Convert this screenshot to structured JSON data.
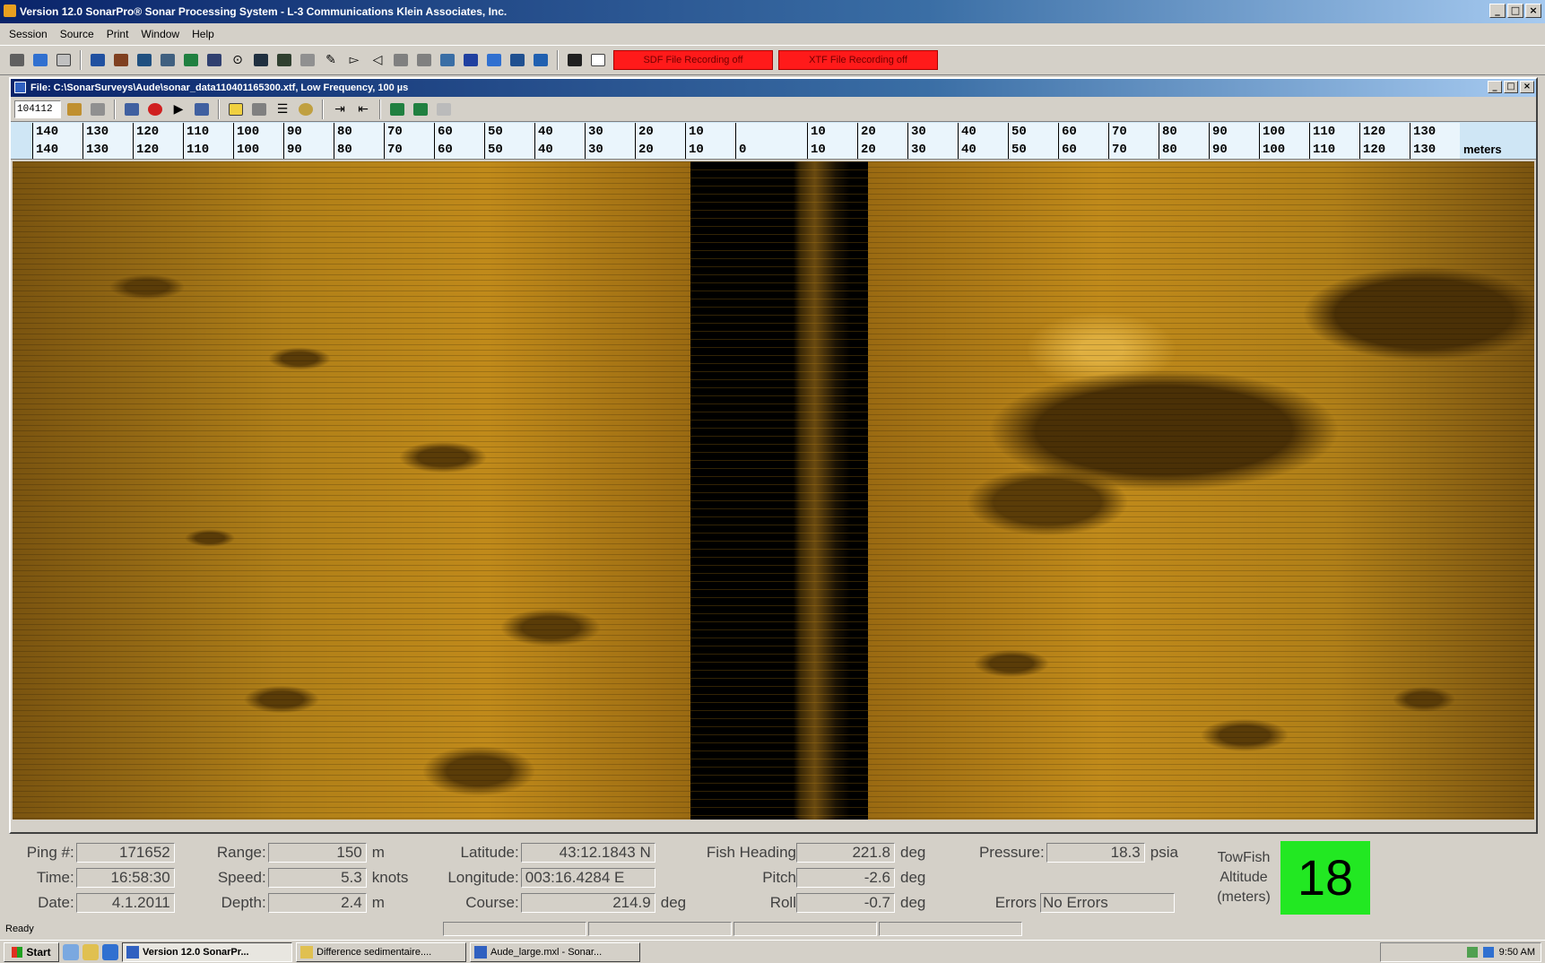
{
  "window": {
    "title": "Version 12.0 SonarPro® Sonar Processing System - L-3 Communications Klein Associates, Inc.",
    "controls": [
      "_",
      "□",
      "×"
    ]
  },
  "menu": [
    "Session",
    "Source",
    "Print",
    "Window",
    "Help"
  ],
  "toolbar": {
    "red_buttons": [
      "SDF File Recording off",
      "XTF File Recording off"
    ]
  },
  "child": {
    "title": "File: C:\\SonarSurveys\\Aude\\sonar_data110401165300.xtf, Low Frequency, 100 µs",
    "ping_field": "104112"
  },
  "scale": {
    "port": [
      "140",
      "130",
      "120",
      "110",
      "100",
      "90",
      "80",
      "70",
      "60",
      "50",
      "40",
      "30",
      "20",
      "10"
    ],
    "starboard": [
      "10",
      "20",
      "30",
      "40",
      "50",
      "60",
      "70",
      "80",
      "90",
      "100",
      "110",
      "120",
      "130"
    ],
    "center_zero": "0",
    "unit": "meters"
  },
  "status": {
    "ping": {
      "label": "Ping #",
      "value": "171652"
    },
    "time": {
      "label": "Time",
      "value": "16:58:30"
    },
    "date": {
      "label": "Date",
      "value": "4.1.2011"
    },
    "range": {
      "label": "Range",
      "value": "150",
      "unit": "m"
    },
    "speed": {
      "label": "Speed",
      "value": "5.3",
      "unit": "knots"
    },
    "depth": {
      "label": "Depth",
      "value": "2.4",
      "unit": "m"
    },
    "latitude": {
      "label": "Latitude",
      "value": "43:12.1843 N"
    },
    "longitude": {
      "label": "Longitude",
      "value": "003:16.4284 E"
    },
    "course": {
      "label": "Course",
      "value": "214.9",
      "unit": "deg"
    },
    "fish_heading": {
      "label": "Fish Heading",
      "value": "221.8",
      "unit": "deg"
    },
    "pitch": {
      "label": "Pitch",
      "value": "-2.6",
      "unit": "deg"
    },
    "roll": {
      "label": "Roll",
      "value": "-0.7",
      "unit": "deg"
    },
    "pressure": {
      "label": "Pressure",
      "value": "18.3",
      "unit": "psia"
    },
    "errors": {
      "label": "Errors",
      "value": "No Errors"
    },
    "altitude": {
      "label": "TowFish Altitude (meters)",
      "value": "18",
      "color": "#22e822"
    }
  },
  "statusline": "Ready",
  "taskbar": {
    "start": "Start",
    "tasks": [
      "Version 12.0 SonarPr...",
      "Difference sedimentaire....",
      "Aude_large.mxl - Sonar..."
    ],
    "clock": "9:50 AM"
  }
}
